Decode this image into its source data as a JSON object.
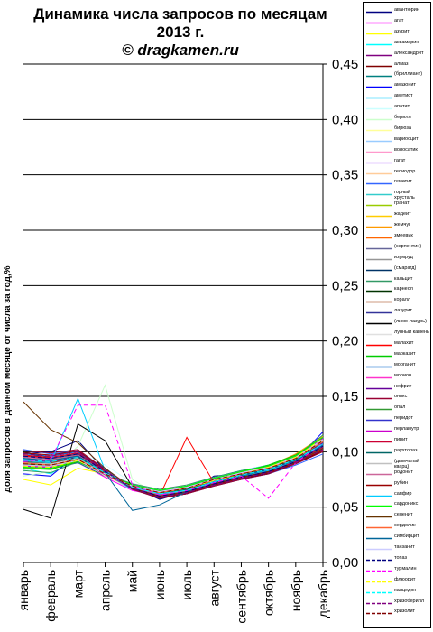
{
  "title_lines": [
    "Динамика числа запросов по месяцам",
    "2013 г.",
    "© dragkamen.ru"
  ],
  "chart_data": {
    "type": "line",
    "title": "Динамика числа запросов по месяцам 2013 г.",
    "watermark": "© dragkamen.ru",
    "ylabel": "доля запросов в данном месяце от числа за год,%",
    "ylim": [
      0.0,
      0.45
    ],
    "yticks": [
      "0,00",
      "0,05",
      "0,10",
      "0,15",
      "0,20",
      "0,25",
      "0,30",
      "0,35",
      "0,40",
      "0,45"
    ],
    "categories": [
      "январь",
      "февраль",
      "март",
      "апрель",
      "май",
      "июнь",
      "июль",
      "август",
      "сентябрь",
      "октябрь",
      "ноябрь",
      "декабрь"
    ],
    "grid": true,
    "legend_position": "right",
    "series": [
      {
        "name": "авантюрин",
        "color": "#000080",
        "dash": false,
        "values": [
          0.098,
          0.1,
          0.11,
          0.083,
          0.068,
          0.057,
          0.064,
          0.078,
          0.08,
          0.082,
          0.09,
          0.105
        ]
      },
      {
        "name": "агат",
        "color": "#ff00ff",
        "dash": false,
        "values": [
          0.092,
          0.085,
          0.09,
          0.077,
          0.065,
          0.06,
          0.066,
          0.073,
          0.078,
          0.08,
          0.09,
          0.1
        ]
      },
      {
        "name": "азурит",
        "color": "#ffff00",
        "dash": false,
        "values": [
          0.075,
          0.07,
          0.085,
          0.08,
          0.066,
          0.062,
          0.068,
          0.075,
          0.082,
          0.085,
          0.092,
          0.11
        ]
      },
      {
        "name": "аквамарин",
        "color": "#00ffff",
        "dash": false,
        "values": [
          0.085,
          0.08,
          0.095,
          0.082,
          0.07,
          0.065,
          0.069,
          0.077,
          0.083,
          0.088,
          0.095,
          0.115
        ]
      },
      {
        "name": "александрит",
        "color": "#800080",
        "dash": false,
        "values": [
          0.1,
          0.095,
          0.097,
          0.081,
          0.068,
          0.061,
          0.065,
          0.072,
          0.077,
          0.083,
          0.098,
          0.105
        ]
      },
      {
        "name": "алмаз",
        "color": "#800000",
        "dash": false,
        "values": [
          0.09,
          0.088,
          0.092,
          0.08,
          0.07,
          0.064,
          0.067,
          0.076,
          0.08,
          0.086,
          0.094,
          0.108
        ]
      },
      {
        "name": "(бриллиант)",
        "color": "#008080",
        "dash": false,
        "values": [
          0.087,
          0.085,
          0.09,
          0.078,
          0.069,
          0.063,
          0.066,
          0.075,
          0.081,
          0.087,
          0.096,
          0.112
        ]
      },
      {
        "name": "амазонит",
        "color": "#0000ff",
        "dash": false,
        "values": [
          0.08,
          0.078,
          0.098,
          0.085,
          0.067,
          0.058,
          0.062,
          0.07,
          0.076,
          0.08,
          0.092,
          0.118
        ]
      },
      {
        "name": "аметист",
        "color": "#00ccff",
        "dash": false,
        "values": [
          0.094,
          0.092,
          0.096,
          0.079,
          0.066,
          0.06,
          0.064,
          0.071,
          0.079,
          0.084,
          0.093,
          0.106
        ]
      },
      {
        "name": "апатит",
        "color": "#ccffff",
        "dash": false,
        "values": [
          0.082,
          0.09,
          0.1,
          0.088,
          0.072,
          0.064,
          0.068,
          0.074,
          0.082,
          0.086,
          0.094,
          0.102
        ]
      },
      {
        "name": "берилл",
        "color": "#ccffcc",
        "dash": false,
        "values": [
          0.078,
          0.082,
          0.105,
          0.16,
          0.075,
          0.06,
          0.063,
          0.07,
          0.077,
          0.082,
          0.09,
          0.1
        ]
      },
      {
        "name": "бирюза",
        "color": "#ffff99",
        "dash": false,
        "values": [
          0.095,
          0.093,
          0.094,
          0.078,
          0.067,
          0.062,
          0.066,
          0.073,
          0.079,
          0.085,
          0.096,
          0.11
        ]
      },
      {
        "name": "вариосцит",
        "color": "#99ccff",
        "dash": false,
        "values": [
          0.088,
          0.087,
          0.091,
          0.082,
          0.07,
          0.065,
          0.069,
          0.076,
          0.083,
          0.088,
          0.097,
          0.104
        ]
      },
      {
        "name": "волосатик",
        "color": "#ff99cc",
        "dash": false,
        "values": [
          0.096,
          0.094,
          0.099,
          0.084,
          0.069,
          0.061,
          0.063,
          0.071,
          0.076,
          0.081,
          0.089,
          0.101
        ]
      },
      {
        "name": "гагат",
        "color": "#cc99ff",
        "dash": false,
        "values": [
          0.084,
          0.086,
          0.093,
          0.08,
          0.071,
          0.064,
          0.067,
          0.074,
          0.081,
          0.086,
          0.095,
          0.113
        ]
      },
      {
        "name": "гелиодор",
        "color": "#ffcc99",
        "dash": false,
        "values": [
          0.09,
          0.091,
          0.095,
          0.081,
          0.068,
          0.06,
          0.065,
          0.072,
          0.078,
          0.084,
          0.097,
          0.107
        ]
      },
      {
        "name": "гематит",
        "color": "#3366ff",
        "dash": false,
        "values": [
          0.102,
          0.098,
          0.101,
          0.083,
          0.067,
          0.059,
          0.062,
          0.07,
          0.075,
          0.08,
          0.088,
          0.098
        ]
      },
      {
        "name": "горный хрусталь",
        "color": "#33cccc",
        "dash": false,
        "values": [
          0.093,
          0.09,
          0.096,
          0.082,
          0.069,
          0.062,
          0.066,
          0.073,
          0.079,
          0.083,
          0.092,
          0.109
        ]
      },
      {
        "name": "гранат",
        "color": "#99cc00",
        "dash": false,
        "values": [
          0.089,
          0.087,
          0.094,
          0.081,
          0.07,
          0.063,
          0.067,
          0.075,
          0.08,
          0.085,
          0.093,
          0.111
        ]
      },
      {
        "name": "жадеит",
        "color": "#ffcc00",
        "dash": false,
        "values": [
          0.097,
          0.095,
          0.098,
          0.082,
          0.068,
          0.061,
          0.064,
          0.072,
          0.077,
          0.082,
          0.09,
          0.103
        ]
      },
      {
        "name": "жемчуг",
        "color": "#ff9900",
        "dash": false,
        "values": [
          0.086,
          0.084,
          0.092,
          0.08,
          0.069,
          0.063,
          0.068,
          0.076,
          0.082,
          0.087,
          0.098,
          0.114
        ]
      },
      {
        "name": "змеевик",
        "color": "#ff6600",
        "dash": false,
        "values": [
          0.091,
          0.089,
          0.097,
          0.083,
          0.068,
          0.06,
          0.063,
          0.071,
          0.078,
          0.083,
          0.094,
          0.108
        ]
      },
      {
        "name": "(серпентин)",
        "color": "#666699",
        "dash": false,
        "values": [
          0.099,
          0.097,
          0.1,
          0.084,
          0.066,
          0.058,
          0.062,
          0.069,
          0.075,
          0.081,
          0.091,
          0.104
        ]
      },
      {
        "name": "изумруд",
        "color": "#969696",
        "dash": false,
        "values": [
          0.094,
          0.092,
          0.095,
          0.079,
          0.067,
          0.061,
          0.065,
          0.073,
          0.08,
          0.086,
          0.095,
          0.107
        ]
      },
      {
        "name": "(смарагд)",
        "color": "#003366",
        "dash": false,
        "values": [
          0.087,
          0.086,
          0.093,
          0.081,
          0.07,
          0.064,
          0.068,
          0.075,
          0.081,
          0.085,
          0.093,
          0.112
        ]
      },
      {
        "name": "кальцит",
        "color": "#339966",
        "dash": false,
        "values": [
          0.083,
          0.081,
          0.091,
          0.08,
          0.071,
          0.066,
          0.07,
          0.077,
          0.083,
          0.087,
          0.096,
          0.115
        ]
      },
      {
        "name": "карнеол",
        "color": "#003300",
        "dash": false,
        "values": [
          0.1,
          0.093,
          0.097,
          0.082,
          0.068,
          0.062,
          0.065,
          0.072,
          0.078,
          0.083,
          0.092,
          0.106
        ]
      },
      {
        "name": "коралл",
        "color": "#993300",
        "dash": false,
        "values": [
          0.092,
          0.09,
          0.094,
          0.08,
          0.069,
          0.063,
          0.066,
          0.074,
          0.079,
          0.084,
          0.093,
          0.109
        ]
      },
      {
        "name": "лазурит",
        "color": "#333399",
        "dash": false,
        "values": [
          0.095,
          0.094,
          0.098,
          0.081,
          0.067,
          0.06,
          0.064,
          0.071,
          0.077,
          0.082,
          0.091,
          0.105
        ]
      },
      {
        "name": "(лимо-лазурь)",
        "color": "#000000",
        "dash": false,
        "values": [
          0.048,
          0.04,
          0.125,
          0.11,
          0.068,
          0.058,
          0.062,
          0.07,
          0.076,
          0.08,
          0.09,
          0.1
        ]
      },
      {
        "name": "лунный камень",
        "color": "#e0e0e0",
        "dash": false,
        "values": [
          0.09,
          0.088,
          0.093,
          0.079,
          0.069,
          0.063,
          0.067,
          0.075,
          0.08,
          0.085,
          0.094,
          0.11
        ]
      },
      {
        "name": "малахит",
        "color": "#ff0000",
        "dash": false,
        "values": [
          0.096,
          0.095,
          0.099,
          0.083,
          0.067,
          0.06,
          0.113,
          0.072,
          0.077,
          0.081,
          0.09,
          0.102
        ]
      },
      {
        "name": "марказит",
        "color": "#00cc00",
        "dash": false,
        "values": [
          0.085,
          0.084,
          0.091,
          0.08,
          0.07,
          0.065,
          0.069,
          0.076,
          0.082,
          0.088,
          0.097,
          0.113
        ]
      },
      {
        "name": "морганит",
        "color": "#0066cc",
        "dash": false,
        "values": [
          0.098,
          0.096,
          0.1,
          0.082,
          0.066,
          0.059,
          0.063,
          0.07,
          0.076,
          0.081,
          0.09,
          0.103
        ]
      },
      {
        "name": "морион",
        "color": "#ff33cc",
        "dash": false,
        "values": [
          0.088,
          0.086,
          0.092,
          0.08,
          0.069,
          0.063,
          0.067,
          0.074,
          0.08,
          0.086,
          0.096,
          0.111
        ]
      },
      {
        "name": "нефрит",
        "color": "#660099",
        "dash": false,
        "values": [
          0.093,
          0.091,
          0.095,
          0.081,
          0.068,
          0.061,
          0.065,
          0.072,
          0.078,
          0.083,
          0.093,
          0.108
        ]
      },
      {
        "name": "оникс",
        "color": "#990033",
        "dash": false,
        "values": [
          0.101,
          0.099,
          0.102,
          0.084,
          0.066,
          0.058,
          0.062,
          0.069,
          0.075,
          0.08,
          0.089,
          0.1
        ]
      },
      {
        "name": "опал",
        "color": "#339933",
        "dash": false,
        "values": [
          0.089,
          0.087,
          0.094,
          0.081,
          0.069,
          0.063,
          0.066,
          0.074,
          0.08,
          0.085,
          0.094,
          0.11
        ]
      },
      {
        "name": "перидот",
        "color": "#3333cc",
        "dash": false,
        "values": [
          0.094,
          0.092,
          0.096,
          0.08,
          0.067,
          0.061,
          0.065,
          0.073,
          0.079,
          0.084,
          0.092,
          0.106
        ]
      },
      {
        "name": "перламутр",
        "color": "#cc00cc",
        "dash": false,
        "values": [
          0.087,
          0.086,
          0.092,
          0.079,
          0.069,
          0.064,
          0.068,
          0.075,
          0.081,
          0.086,
          0.095,
          0.112
        ]
      },
      {
        "name": "пирит",
        "color": "#cc0033",
        "dash": false,
        "values": [
          0.097,
          0.095,
          0.099,
          0.082,
          0.067,
          0.06,
          0.064,
          0.071,
          0.077,
          0.082,
          0.091,
          0.104
        ]
      },
      {
        "name": "раухтопаз",
        "color": "#006666",
        "dash": false,
        "values": [
          0.091,
          0.089,
          0.095,
          0.081,
          0.068,
          0.062,
          0.066,
          0.073,
          0.079,
          0.085,
          0.093,
          0.109
        ]
      },
      {
        "name": "(дымчатый кварц)",
        "color": "#c0c0c0",
        "dash": false,
        "values": [
          0.09,
          0.089,
          0.094,
          0.08,
          0.069,
          0.063,
          0.067,
          0.074,
          0.08,
          0.085,
          0.094,
          0.11
        ]
      },
      {
        "name": "родонит",
        "color": "#cc6699",
        "dash": false,
        "values": [
          0.095,
          0.093,
          0.097,
          0.081,
          0.068,
          0.061,
          0.064,
          0.072,
          0.078,
          0.083,
          0.092,
          0.106
        ]
      },
      {
        "name": "рубин",
        "color": "#990000",
        "dash": false,
        "values": [
          0.099,
          0.097,
          0.101,
          0.083,
          0.067,
          0.059,
          0.063,
          0.07,
          0.076,
          0.081,
          0.09,
          0.101
        ]
      },
      {
        "name": "сапфир",
        "color": "#00ccff",
        "dash": false,
        "values": [
          0.092,
          0.09,
          0.148,
          0.083,
          0.068,
          0.062,
          0.065,
          0.073,
          0.078,
          0.083,
          0.092,
          0.107
        ]
      },
      {
        "name": "сардоникс",
        "color": "#00ff00",
        "dash": false,
        "values": [
          0.086,
          0.085,
          0.092,
          0.08,
          0.07,
          0.065,
          0.069,
          0.076,
          0.082,
          0.087,
          0.096,
          0.113
        ]
      },
      {
        "name": "селенит",
        "color": "#663300",
        "dash": false,
        "values": [
          0.145,
          0.12,
          0.108,
          0.085,
          0.067,
          0.06,
          0.064,
          0.071,
          0.077,
          0.082,
          0.09,
          0.103
        ]
      },
      {
        "name": "сердолик",
        "color": "#ff6633",
        "dash": false,
        "values": [
          0.09,
          0.088,
          0.093,
          0.08,
          0.069,
          0.063,
          0.067,
          0.074,
          0.08,
          0.085,
          0.094,
          0.109
        ]
      },
      {
        "name": "симбирцит",
        "color": "#006699",
        "dash": false,
        "values": [
          0.094,
          0.092,
          0.096,
          0.081,
          0.047,
          0.052,
          0.064,
          0.072,
          0.078,
          0.084,
          0.092,
          0.106
        ]
      },
      {
        "name": "танзанит",
        "color": "#ccccff",
        "dash": false,
        "values": [
          0.088,
          0.087,
          0.092,
          0.08,
          0.069,
          0.064,
          0.068,
          0.075,
          0.081,
          0.086,
          0.095,
          0.111
        ]
      },
      {
        "name": "топаз",
        "color": "#000080",
        "dash": true,
        "values": [
          0.096,
          0.094,
          0.098,
          0.082,
          0.067,
          0.06,
          0.064,
          0.071,
          0.077,
          0.082,
          0.091,
          0.105
        ]
      },
      {
        "name": "турмалин",
        "color": "#ff00ff",
        "dash": true,
        "values": [
          0.091,
          0.093,
          0.142,
          0.142,
          0.07,
          0.061,
          0.065,
          0.072,
          0.078,
          0.058,
          0.09,
          0.108
        ]
      },
      {
        "name": "флюорит",
        "color": "#ffff00",
        "dash": true,
        "values": [
          0.087,
          0.086,
          0.092,
          0.08,
          0.069,
          0.063,
          0.067,
          0.074,
          0.08,
          0.086,
          0.095,
          0.112
        ]
      },
      {
        "name": "халцедон",
        "color": "#00ffff",
        "dash": true,
        "values": [
          0.093,
          0.091,
          0.095,
          0.081,
          0.068,
          0.062,
          0.065,
          0.073,
          0.079,
          0.084,
          0.093,
          0.107
        ]
      },
      {
        "name": "хризоберилл",
        "color": "#800080",
        "dash": true,
        "values": [
          0.098,
          0.096,
          0.1,
          0.083,
          0.067,
          0.059,
          0.063,
          0.07,
          0.076,
          0.081,
          0.09,
          0.102
        ]
      },
      {
        "name": "хризолит",
        "color": "#800000",
        "dash": true,
        "values": [
          0.089,
          0.088,
          0.093,
          0.08,
          0.069,
          0.063,
          0.067,
          0.075,
          0.08,
          0.085,
          0.094,
          0.11
        ]
      }
    ]
  }
}
